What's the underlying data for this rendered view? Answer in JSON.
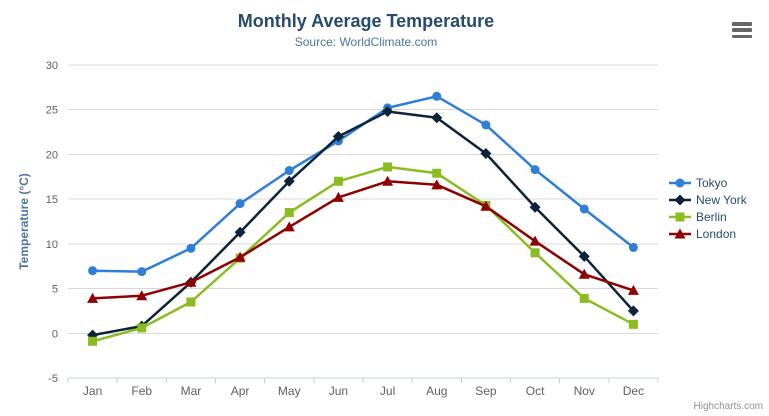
{
  "chart": {
    "title": "Monthly Average Temperature",
    "subtitle": "Source: WorldClimate.com",
    "credit": "Highcharts.com",
    "export_icon": "hamburger-menu-icon"
  },
  "chart_data": {
    "type": "line",
    "title": "Monthly Average Temperature",
    "subtitle": "Source: WorldClimate.com",
    "categories": [
      "Jan",
      "Feb",
      "Mar",
      "Apr",
      "May",
      "Jun",
      "Jul",
      "Aug",
      "Sep",
      "Oct",
      "Nov",
      "Dec"
    ],
    "xlabel": "",
    "ylabel": "Temperature (°C)",
    "ylim": [
      -5,
      30
    ],
    "ytick_step": 5,
    "grid": true,
    "legend_position": "right",
    "colors": {
      "grid": "#d8d8d8",
      "axis_line": "#c0d0e0",
      "axis_label": "#606060",
      "title": "#274b6d",
      "subtitle": "#4d759e",
      "axis_title": "#4d759e",
      "legend_text": "#274b6d"
    },
    "series": [
      {
        "name": "Tokyo",
        "color": "#2f7ed8",
        "marker": "circle",
        "values": [
          7.0,
          6.9,
          9.5,
          14.5,
          18.2,
          21.5,
          25.2,
          26.5,
          23.3,
          18.3,
          13.9,
          9.6
        ]
      },
      {
        "name": "New York",
        "color": "#0d233a",
        "marker": "diamond",
        "values": [
          -0.2,
          0.8,
          5.7,
          11.3,
          17.0,
          22.0,
          24.8,
          24.1,
          20.1,
          14.1,
          8.6,
          2.5
        ]
      },
      {
        "name": "Berlin",
        "color": "#8bbc21",
        "marker": "square",
        "values": [
          -0.9,
          0.6,
          3.5,
          8.4,
          13.5,
          17.0,
          18.6,
          17.9,
          14.3,
          9.0,
          3.9,
          1.0
        ]
      },
      {
        "name": "London",
        "color": "#910000",
        "marker": "triangle",
        "values": [
          3.9,
          4.2,
          5.7,
          8.5,
          11.9,
          15.2,
          17.0,
          16.6,
          14.2,
          10.3,
          6.6,
          4.8
        ]
      }
    ]
  }
}
